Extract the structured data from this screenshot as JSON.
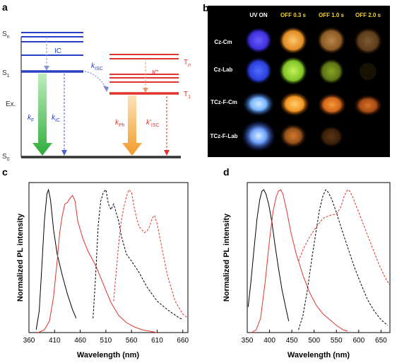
{
  "panels": {
    "a": "a",
    "b": "b",
    "c": "c",
    "d": "d"
  },
  "jablonski": {
    "s0": "S",
    "s0_sub": "0",
    "s1": "S",
    "s1_sub": "1",
    "sn": "S",
    "sn_sub": "n",
    "tn": "T",
    "tn_sub": "n",
    "t1": "T",
    "t1_sub": "1",
    "ic_singlet": "IC",
    "ic_triplet": "IC",
    "kisc": "k",
    "kisc_sub": "ISC",
    "ex": "Ex.",
    "kf": "k",
    "kf_sub": "F",
    "kic": "k",
    "kic_sub": "IC",
    "kph": "k",
    "kph_sub": "Ph",
    "kisc2": "k'",
    "kisc2_sub": "ISC",
    "colors": {
      "singlet": "#2b3fc4",
      "triplet": "#e0342e",
      "ground": "#333333",
      "fluor_arrow": "#4cc34c",
      "phos_arrow": "#f4a23a"
    }
  },
  "photos": {
    "columns": [
      "UV ON",
      "OFF 0.3 s",
      "OFF 1.0 s",
      "OFF 2.0 s"
    ],
    "rows": [
      "Cz-Cm",
      "Cz-Lab",
      "TCz-F-Cm",
      "TCz-F-Lab"
    ],
    "header_color": "#ffffff",
    "off_header_color": "#f2d233"
  },
  "chart_c": {
    "xlabel": "Wavelength (nm)",
    "ylabel": "Normalized PL intensity",
    "xticks": [
      "360",
      "410",
      "460",
      "510",
      "560",
      "610",
      "660"
    ]
  },
  "chart_d": {
    "xlabel": "Wavelength (nm)",
    "ylabel": "Normalized PL intensity",
    "xticks": [
      "350",
      "400",
      "450",
      "500",
      "550",
      "600",
      "650"
    ]
  },
  "chart_data": [
    {
      "type": "line",
      "xlim": [
        360,
        670
      ],
      "ylim": [
        0,
        1.05
      ],
      "xlabel": "Wavelength (nm)",
      "ylabel": "Normalized PL intensity",
      "series": [
        {
          "color": "#000000",
          "style": "solid",
          "x": [
            374,
            380,
            385,
            390,
            395,
            398,
            402,
            408,
            415,
            425,
            435,
            445,
            452
          ],
          "y": [
            0.02,
            0.15,
            0.45,
            0.78,
            0.97,
            1.0,
            0.93,
            0.72,
            0.55,
            0.4,
            0.27,
            0.16,
            0.1
          ]
        },
        {
          "color": "#e0342e",
          "style": "solid",
          "x": [
            378,
            390,
            400,
            408,
            415,
            420,
            425,
            430,
            435,
            440,
            445,
            450,
            455,
            465,
            475,
            490,
            505,
            520,
            535,
            550,
            565,
            580,
            595,
            610
          ],
          "y": [
            0.0,
            0.02,
            0.08,
            0.25,
            0.5,
            0.7,
            0.82,
            0.9,
            0.91,
            0.94,
            0.96,
            0.92,
            0.78,
            0.66,
            0.57,
            0.47,
            0.34,
            0.21,
            0.12,
            0.07,
            0.04,
            0.02,
            0.01,
            0.0
          ]
        },
        {
          "color": "#000000",
          "style": "dashed",
          "x": [
            485,
            490,
            495,
            500,
            505,
            510,
            515,
            520,
            525,
            530,
            535,
            540,
            550,
            560,
            575,
            590,
            610,
            630,
            650,
            660
          ],
          "y": [
            0.1,
            0.4,
            0.75,
            0.92,
            0.98,
            1.0,
            0.9,
            0.86,
            0.9,
            0.84,
            0.78,
            0.68,
            0.55,
            0.5,
            0.42,
            0.32,
            0.22,
            0.16,
            0.11,
            0.09
          ]
        },
        {
          "color": "#e0342e",
          "style": "dashed",
          "x": [
            525,
            530,
            535,
            540,
            545,
            550,
            555,
            560,
            565,
            570,
            575,
            580,
            585,
            590,
            595,
            600,
            605,
            610,
            620,
            630,
            645,
            660,
            670
          ],
          "y": [
            0.22,
            0.42,
            0.62,
            0.78,
            0.88,
            0.95,
            1.0,
            0.98,
            0.88,
            0.8,
            0.74,
            0.72,
            0.7,
            0.71,
            0.74,
            0.8,
            0.82,
            0.76,
            0.58,
            0.4,
            0.22,
            0.13,
            0.1
          ]
        }
      ]
    },
    {
      "type": "line",
      "xlim": [
        350,
        670
      ],
      "ylim": [
        0,
        1.05
      ],
      "xlabel": "Wavelength (nm)",
      "ylabel": "Normalized PL intensity",
      "series": [
        {
          "color": "#000000",
          "style": "solid",
          "x": [
            352,
            358,
            365,
            372,
            378,
            383,
            387,
            392,
            398,
            405,
            412,
            420,
            428,
            436,
            443
          ],
          "y": [
            0.18,
            0.35,
            0.58,
            0.8,
            0.93,
            0.99,
            1.0,
            0.97,
            0.9,
            0.78,
            0.62,
            0.45,
            0.3,
            0.18,
            0.08
          ]
        },
        {
          "color": "#e0342e",
          "style": "solid",
          "x": [
            360,
            370,
            380,
            390,
            400,
            408,
            415,
            420,
            425,
            430,
            438,
            448,
            460,
            475,
            490,
            505,
            520,
            535,
            550,
            565,
            575
          ],
          "y": [
            0.0,
            0.02,
            0.1,
            0.35,
            0.65,
            0.85,
            0.95,
            0.99,
            1.0,
            0.97,
            0.86,
            0.7,
            0.55,
            0.4,
            0.28,
            0.19,
            0.13,
            0.09,
            0.05,
            0.02,
            0.01
          ]
        },
        {
          "color": "#000000",
          "style": "dashed",
          "x": [
            465,
            475,
            485,
            495,
            505,
            512,
            520,
            526,
            532,
            540,
            550,
            560,
            575,
            590,
            605,
            620,
            635,
            650,
            665
          ],
          "y": [
            0.02,
            0.12,
            0.3,
            0.52,
            0.72,
            0.86,
            0.96,
            1.0,
            0.98,
            0.93,
            0.84,
            0.74,
            0.6,
            0.46,
            0.34,
            0.23,
            0.15,
            0.09,
            0.05
          ]
        },
        {
          "color": "#e0342e",
          "style": "dashed",
          "x": [
            465,
            475,
            490,
            505,
            520,
            535,
            550,
            560,
            568,
            575,
            580,
            588,
            595,
            605,
            615,
            630,
            645,
            660,
            670
          ],
          "y": [
            0.5,
            0.58,
            0.67,
            0.74,
            0.8,
            0.82,
            0.83,
            0.88,
            0.96,
            1.0,
            0.99,
            0.94,
            0.88,
            0.8,
            0.72,
            0.6,
            0.48,
            0.38,
            0.33
          ]
        }
      ]
    }
  ]
}
